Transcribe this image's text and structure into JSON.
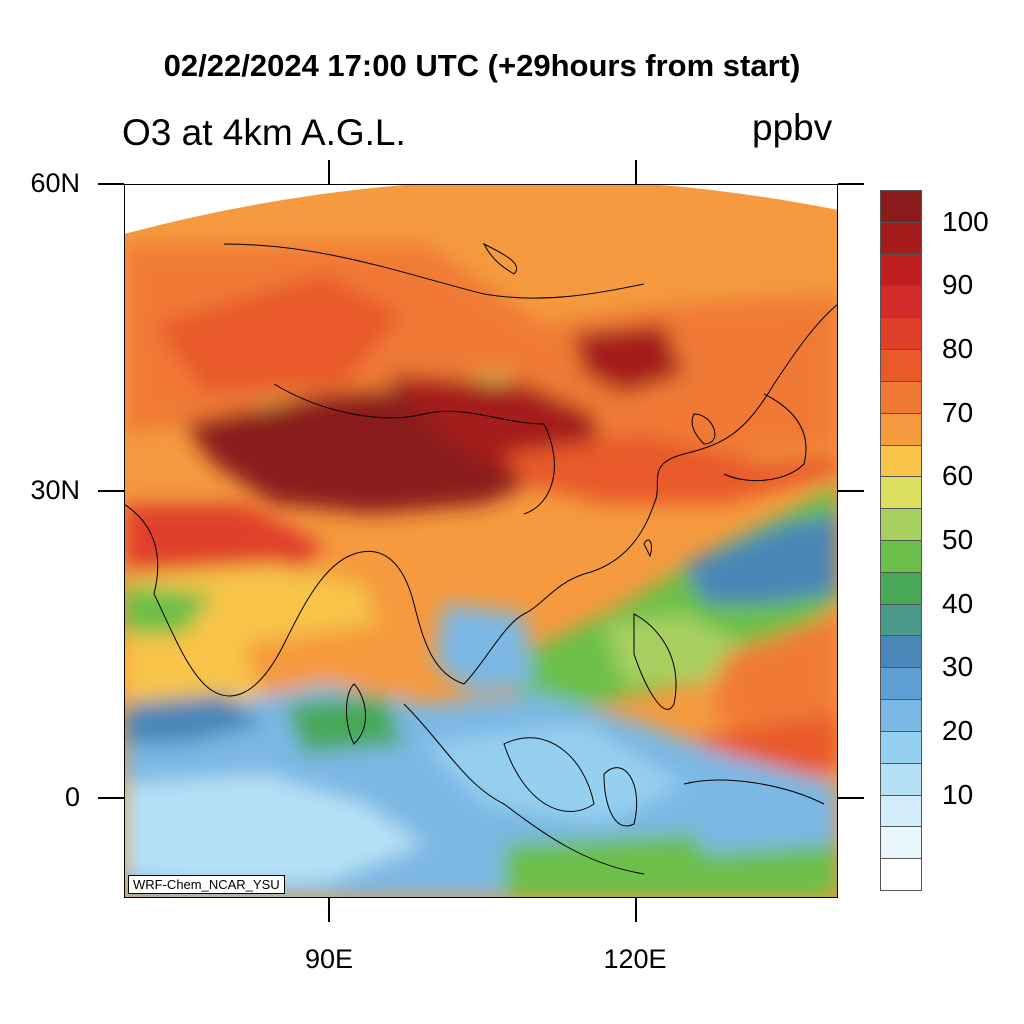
{
  "title": "02/22/2024 17:00 UTC (+29hours from start)",
  "subtitle": "O3 at 4km A.G.L.",
  "units": "ppbv",
  "attribution": "WRF-Chem_NCAR_YSU",
  "lat_labels": [
    "60N",
    "30N",
    "0"
  ],
  "lon_labels": [
    "90E",
    "120E"
  ],
  "colorbar": {
    "colors": [
      "#8b1a1a",
      "#a51c1c",
      "#bf1f1f",
      "#d42a2a",
      "#e0402a",
      "#e85a2a",
      "#f07a34",
      "#f59a3e",
      "#f8c44a",
      "#dde060",
      "#a8d060",
      "#6cbf4a",
      "#48a858",
      "#4a9a8c",
      "#4a86b8",
      "#5ea0d4",
      "#7cb8e4",
      "#96d0f0",
      "#b6e0f6",
      "#d2ecfa",
      "#e8f6fc",
      "#ffffff"
    ],
    "labels": [
      "100",
      "90",
      "80",
      "70",
      "60",
      "50",
      "40",
      "30",
      "20",
      "10"
    ]
  },
  "map": {
    "lon_range": [
      70,
      140
    ],
    "lat_range": [
      -10,
      60
    ],
    "variable": "O3",
    "level": "4km A.G.L."
  }
}
